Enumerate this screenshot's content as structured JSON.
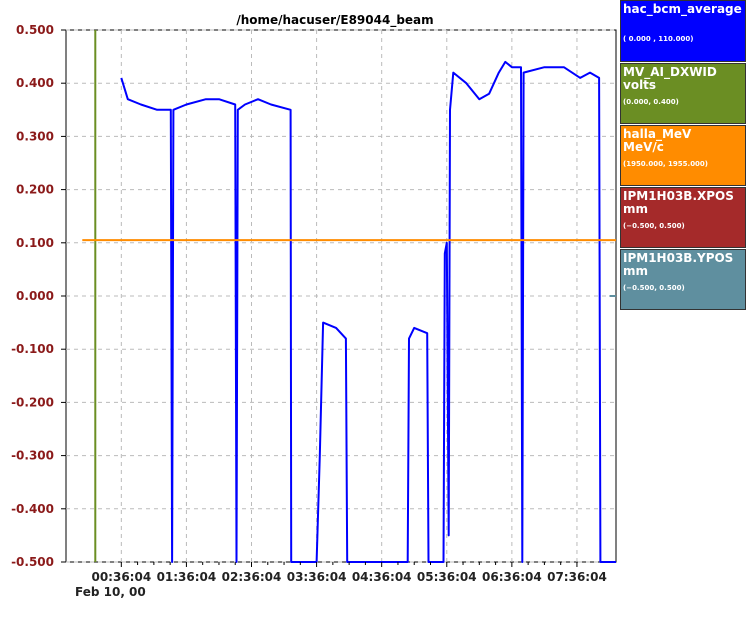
{
  "chart_data": {
    "type": "line",
    "title": "/home/hacuser/E89044_beam",
    "ylim": [
      -0.5,
      0.5
    ],
    "y_ticks": [
      "0.500",
      "0.400",
      "0.300",
      "0.200",
      "0.100",
      "0.000",
      "-0.100",
      "-0.200",
      "-0.300",
      "-0.400",
      "-0.500"
    ],
    "x_ticks": [
      "00:36:04",
      "01:36:04",
      "02:36:04",
      "03:36:04",
      "04:36:04",
      "05:36:04",
      "06:36:04",
      "07:36:04"
    ],
    "x_date_label": "Feb 10, 00",
    "grid": true,
    "legend_position": "right",
    "series": [
      {
        "name": "hac_bcm_average",
        "units": "",
        "range": "( 0.000 , 110.000)",
        "color": "#0000ff",
        "segments": [
          [
            [
              0,
              0.41
            ],
            [
              0.1,
              0.37
            ],
            [
              0.3,
              0.36
            ],
            [
              0.55,
              0.35
            ],
            [
              0.76,
              0.35
            ],
            [
              0.78,
              -0.5
            ],
            [
              0.8,
              0.35
            ],
            [
              1.0,
              0.36
            ],
            [
              1.3,
              0.37
            ],
            [
              1.5,
              0.37
            ],
            [
              1.75,
              0.36
            ],
            [
              1.77,
              -0.5
            ],
            [
              1.79,
              0.35
            ],
            [
              1.9,
              0.36
            ],
            [
              2.1,
              0.37
            ],
            [
              2.3,
              0.36
            ],
            [
              2.6,
              0.35
            ],
            [
              2.61,
              -0.5
            ],
            [
              3.0,
              -0.5
            ],
            [
              3.05,
              -0.3
            ],
            [
              3.1,
              -0.05
            ],
            [
              3.3,
              -0.06
            ],
            [
              3.45,
              -0.08
            ],
            [
              3.47,
              -0.5
            ],
            [
              4.4,
              -0.5
            ],
            [
              4.42,
              -0.08
            ],
            [
              4.5,
              -0.06
            ],
            [
              4.7,
              -0.07
            ],
            [
              4.72,
              -0.5
            ],
            [
              4.95,
              -0.5
            ],
            [
              4.97,
              0.08
            ],
            [
              5.0,
              0.1
            ],
            [
              5.03,
              -0.45
            ],
            [
              5.05,
              0.35
            ],
            [
              5.1,
              0.42
            ],
            [
              5.3,
              0.4
            ],
            [
              5.5,
              0.37
            ],
            [
              5.65,
              0.38
            ],
            [
              5.8,
              0.42
            ],
            [
              5.9,
              0.44
            ],
            [
              6.0,
              0.43
            ],
            [
              6.14,
              0.43
            ],
            [
              6.16,
              -0.5
            ],
            [
              6.18,
              0.42
            ],
            [
              6.5,
              0.43
            ],
            [
              6.8,
              0.43
            ],
            [
              7.05,
              0.41
            ],
            [
              7.2,
              0.42
            ],
            [
              7.34,
              0.41
            ],
            [
              7.36,
              -0.5
            ],
            [
              7.6,
              -0.5
            ]
          ]
        ]
      },
      {
        "name": "MV_AI_DXWID",
        "units": "volts",
        "range": "(0.000, 0.400)",
        "color": "#6b8e23",
        "segments": [
          [
            [
              -0.4,
              0.5
            ],
            [
              -0.4,
              -0.5
            ]
          ]
        ]
      },
      {
        "name": "halla_MeV",
        "units": "MeV/c",
        "range": "(1950.000, 1955.000)",
        "color": "#ff8c00",
        "segments": [
          [
            [
              -0.6,
              0.105
            ],
            [
              7.6,
              0.105
            ]
          ]
        ]
      },
      {
        "name": "IPM1H03B.XPOS",
        "units": "mm",
        "range": "(−0.500, 0.500)",
        "color": "#a52a2a",
        "segments": []
      },
      {
        "name": "IPM1H03B.YPOS",
        "units": "mm",
        "range": "(−0.500, 0.500)",
        "color": "#5f8f9f",
        "segments": [
          [
            [
              7.5,
              0.0
            ],
            [
              7.6,
              0.0
            ]
          ]
        ]
      }
    ]
  }
}
